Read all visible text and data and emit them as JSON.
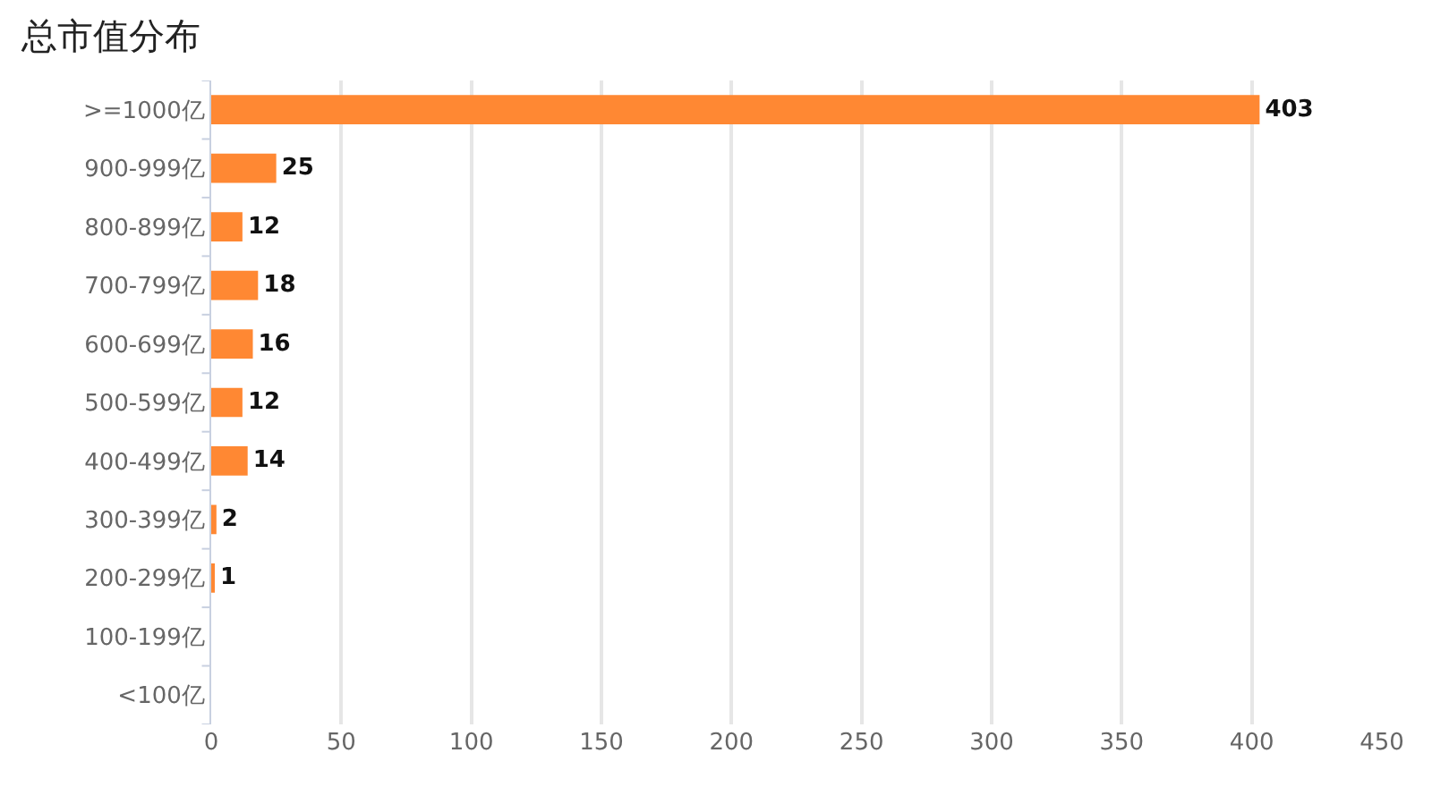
{
  "chart_data": {
    "type": "bar",
    "orientation": "horizontal",
    "title": "总市值分布",
    "categories": [
      ">=1000亿",
      "900-999亿",
      "800-899亿",
      "700-799亿",
      "600-699亿",
      "500-599亿",
      "400-499亿",
      "300-399亿",
      "200-299亿",
      "100-199亿",
      "<100亿"
    ],
    "values": [
      403,
      25,
      12,
      18,
      16,
      12,
      14,
      2,
      1,
      null,
      null
    ],
    "color": "#ff8833",
    "xlim": [
      0,
      450
    ],
    "xticks": [
      0,
      50,
      100,
      150,
      200,
      250,
      300,
      350,
      400,
      450
    ],
    "grid": "x",
    "data_labels": true,
    "legend": false
  }
}
